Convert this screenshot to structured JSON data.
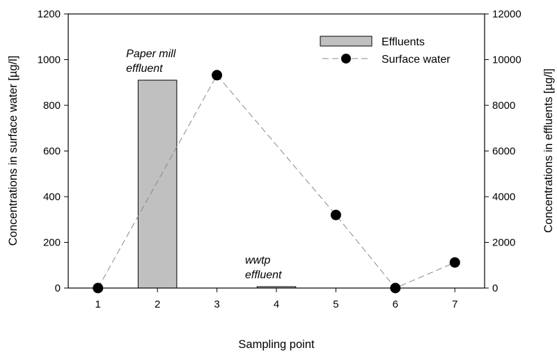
{
  "chart_data": {
    "type": "bar+line",
    "xlabel": "Sampling point",
    "ylabel_left": "Concentrations in surface water [µg/l]",
    "ylabel_right": "Concentrations in effluents [µg/l]",
    "x_categories": [
      1,
      2,
      3,
      4,
      5,
      6,
      7
    ],
    "xlim": [
      0.5,
      7.5
    ],
    "ylim_left": [
      0,
      1200
    ],
    "yticks_left": [
      0,
      200,
      400,
      600,
      800,
      1000,
      1200
    ],
    "ylim_right": [
      0,
      12000
    ],
    "yticks_right": [
      0,
      2000,
      4000,
      6000,
      8000,
      10000,
      12000
    ],
    "grid": false,
    "legend_position": "top-right",
    "series": [
      {
        "name": "Effluents",
        "kind": "bar",
        "axis": "right",
        "color": "#c0c0c0",
        "points": [
          {
            "x": 2,
            "y": 9100
          },
          {
            "x": 4,
            "y": 60
          }
        ]
      },
      {
        "name": "Surface water",
        "kind": "line",
        "axis": "left",
        "line_style": "dashed",
        "line_color": "#888888",
        "marker_color": "#000000",
        "points": [
          {
            "x": 1,
            "y": 0
          },
          {
            "x": 3,
            "y": 932
          },
          {
            "x": 5,
            "y": 320
          },
          {
            "x": 6,
            "y": 0
          },
          {
            "x": 7,
            "y": 112
          }
        ]
      }
    ],
    "annotations": [
      {
        "lines": [
          "Paper mill",
          "effluent"
        ],
        "x": 2
      },
      {
        "lines": [
          "wwtp",
          "effluent"
        ],
        "x": 4
      }
    ]
  }
}
